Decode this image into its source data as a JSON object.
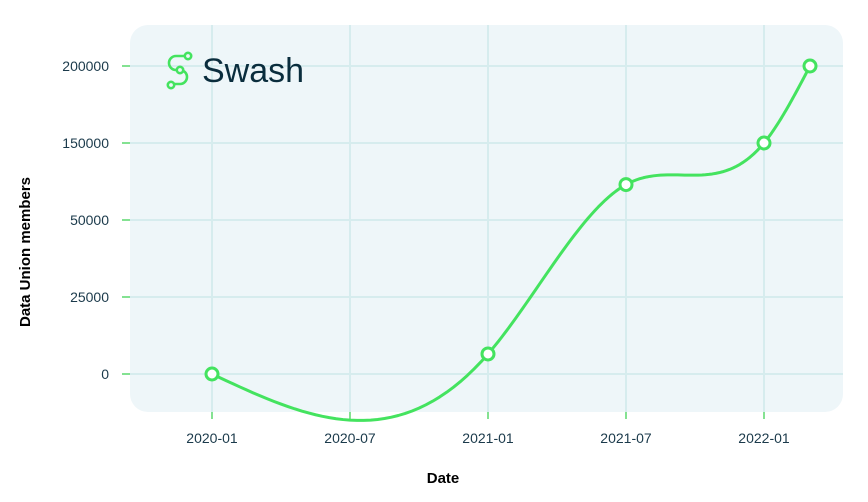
{
  "logo": {
    "text": "Swash",
    "icon": "swash-s-logo-icon"
  },
  "colors": {
    "plot_background": "#eef6f9",
    "grid": "#d6ecee",
    "line": "#44e35f",
    "tick_mark": "#5ad96e",
    "text": "#1b3a4b",
    "logo_text": "#0a2d3d"
  },
  "chart_data": {
    "type": "line",
    "title": "",
    "xlabel": "Date",
    "ylabel": "Data Union members",
    "x_ticks": [
      "2020-01",
      "2020-07",
      "2021-01",
      "2021-07",
      "2022-01"
    ],
    "y_ticks": [
      "0",
      "25000",
      "50000",
      "150000",
      "200000"
    ],
    "y_scale": "non-linear (tick labels unevenly spaced in value, evenly spaced on axis)",
    "grid": true,
    "smooth": true,
    "series": [
      {
        "points": [
          {
            "x": "2020-01",
            "y": 0
          },
          {
            "x": "2021-01",
            "y": 6500
          },
          {
            "x": "2021-07",
            "y": 96000
          },
          {
            "x": "2022-01",
            "y": 150000
          },
          {
            "x": "2022-03",
            "y": 200000
          }
        ]
      }
    ]
  }
}
